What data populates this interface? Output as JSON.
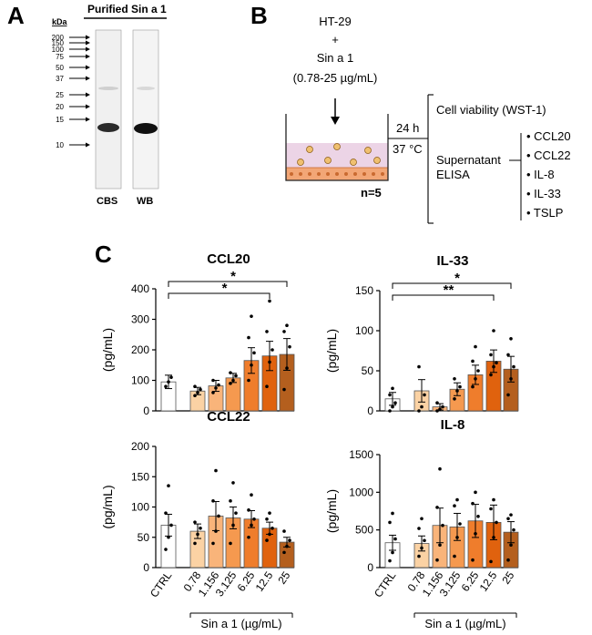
{
  "panel_labels": {
    "a": "A",
    "b": "B",
    "c": "C"
  },
  "panel_a": {
    "header": "Purified  Sin a 1",
    "kda_label": "kDa",
    "markers": [
      "200",
      "150",
      "100",
      "75",
      "50",
      "37",
      "25",
      "20",
      "15",
      "10"
    ],
    "lanes": [
      "CBS",
      "WB"
    ]
  },
  "panel_b": {
    "cell_line": "HT-29",
    "plus": "+",
    "treatment": "Sin a 1",
    "concentration": "(0.78-25 µg/mL)",
    "time": "24 h",
    "temperature": "37 °C",
    "n": "n=5",
    "readout_viability": "Cell viability (WST-1)",
    "readout_elisa_1": "Supernatant",
    "readout_elisa_2": "ELISA",
    "analytes": [
      "CCL20",
      "CCL22",
      "IL-8",
      "IL-33",
      "TSLP"
    ],
    "bullet": "•"
  },
  "x_axis_label": "Sin a 1 (µg/mL)",
  "colors": {
    "CTRL": "#ffffff",
    "0.78": "#fbd2a4",
    "1.156": "#f9b47a",
    "3.125": "#f5994f",
    "6.25": "#ef7d2c",
    "12.5": "#e0620e",
    "25": "#b45f1e"
  },
  "chart_data": [
    {
      "type": "bar",
      "title": "CCL20",
      "ylabel": "(pg/mL)",
      "categories": [
        "CTRL",
        "0.78",
        "1.156",
        "3.125",
        "6.25",
        "12.5",
        "25"
      ],
      "values": [
        95,
        65,
        82,
        108,
        165,
        180,
        185
      ],
      "errors": [
        22,
        12,
        18,
        15,
        42,
        48,
        52
      ],
      "ylim": [
        0,
        400
      ],
      "yticks": [
        0,
        100,
        200,
        300,
        400
      ],
      "points": [
        [
          80,
          95,
          110
        ],
        [
          50,
          60,
          70,
          80
        ],
        [
          60,
          75,
          85,
          100
        ],
        [
          90,
          100,
          115,
          125
        ],
        [
          100,
          150,
          190,
          240,
          310
        ],
        [
          80,
          160,
          200,
          260,
          360
        ],
        [
          70,
          140,
          210,
          260,
          280
        ]
      ],
      "significance": [
        {
          "from": "CTRL",
          "to": "25",
          "label": "*"
        },
        {
          "from": "CTRL",
          "to": "12.5",
          "label": "*"
        }
      ]
    },
    {
      "type": "bar",
      "title": "IL-33",
      "ylabel": "(pg/mL)",
      "categories": [
        "CTRL",
        "0.78",
        "1.156",
        "3.125",
        "6.25",
        "12.5",
        "25"
      ],
      "values": [
        15,
        25,
        5,
        27,
        45,
        62,
        52
      ],
      "errors": [
        8,
        14,
        4,
        8,
        12,
        14,
        16
      ],
      "ylim": [
        0,
        150
      ],
      "yticks": [
        0,
        50,
        100,
        150
      ],
      "points": [
        [
          0,
          5,
          10,
          20,
          28
        ],
        [
          0,
          5,
          20,
          55
        ],
        [
          0,
          2,
          5,
          10
        ],
        [
          15,
          25,
          30,
          40
        ],
        [
          30,
          40,
          50,
          62,
          80
        ],
        [
          45,
          55,
          60,
          70,
          100
        ],
        [
          20,
          40,
          55,
          70,
          90
        ]
      ],
      "significance": [
        {
          "from": "CTRL",
          "to": "25",
          "label": "*"
        },
        {
          "from": "CTRL",
          "to": "12.5",
          "label": "**"
        }
      ]
    },
    {
      "type": "bar",
      "title": "CCL22",
      "ylabel": "(pg/mL)",
      "categories": [
        "CTRL",
        "0.78",
        "1.156",
        "3.125",
        "6.25",
        "12.5",
        "25"
      ],
      "values": [
        70,
        60,
        85,
        82,
        80,
        65,
        42
      ],
      "errors": [
        18,
        12,
        24,
        18,
        14,
        10,
        8
      ],
      "ylim": [
        0,
        200
      ],
      "yticks": [
        0,
        50,
        100,
        150,
        200
      ],
      "points": [
        [
          30,
          50,
          70,
          90,
          135
        ],
        [
          40,
          55,
          65,
          75
        ],
        [
          40,
          60,
          85,
          110,
          160
        ],
        [
          40,
          70,
          90,
          110,
          140
        ],
        [
          50,
          70,
          80,
          95,
          120
        ],
        [
          45,
          55,
          65,
          80,
          90
        ],
        [
          25,
          35,
          45,
          60
        ]
      ],
      "significance": []
    },
    {
      "type": "bar",
      "title": "IL-8",
      "ylabel": "(pg/mL)",
      "categories": [
        "CTRL",
        "0.78",
        "1.156",
        "3.125",
        "6.25",
        "12.5",
        "25"
      ],
      "values": [
        330,
        320,
        560,
        540,
        620,
        600,
        470
      ],
      "errors": [
        100,
        100,
        230,
        180,
        220,
        230,
        140
      ],
      "ylim": [
        0,
        1500
      ],
      "yticks": [
        0,
        500,
        1000,
        1500
      ],
      "points": [
        [
          90,
          200,
          380,
          600,
          720
        ],
        [
          150,
          260,
          360,
          520,
          650
        ],
        [
          100,
          300,
          560,
          800,
          1310
        ],
        [
          150,
          400,
          580,
          820,
          900
        ],
        [
          100,
          450,
          680,
          850,
          1000
        ],
        [
          80,
          400,
          600,
          780,
          900
        ],
        [
          100,
          300,
          500,
          650,
          700
        ]
      ],
      "significance": []
    }
  ]
}
